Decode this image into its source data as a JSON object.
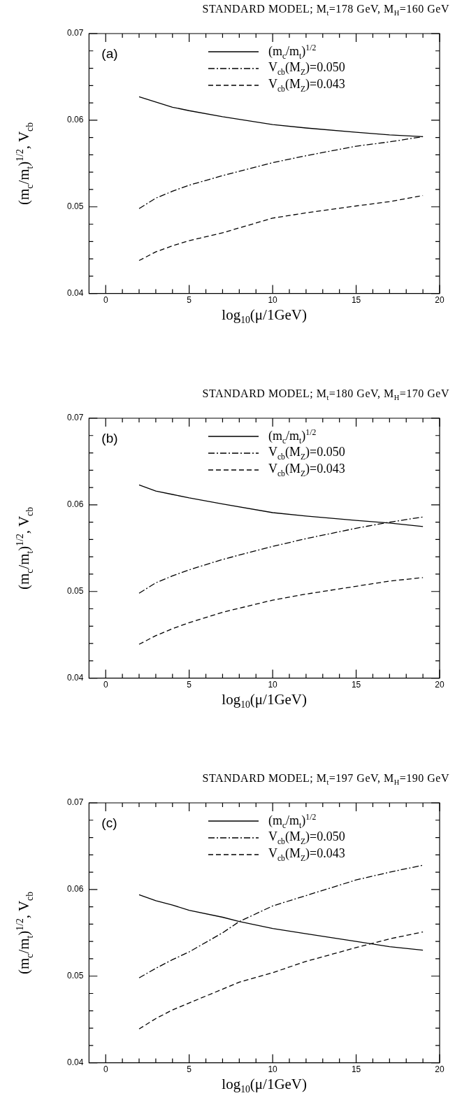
{
  "chart_data": [
    {
      "type": "line",
      "title": "STANDARD MODEL; M$_{t}$=178 GeV, M$_{H}$=160 GeV",
      "xlabel": "log$_{10}$(μ/1GeV)",
      "ylabel": "(m$_{c}$/m$_{t}$)$^{1/2}$, V$_{cb}$",
      "annotations": [
        "(a)"
      ],
      "legend": "top right",
      "marker": "none",
      "grid": false,
      "x": [
        2,
        3,
        4,
        5,
        7,
        10,
        12,
        15,
        17,
        19
      ],
      "xlim": [
        -1,
        20
      ],
      "xticks": [
        0,
        {
          "value": 1,
          "label": null
        },
        {
          "value": 2,
          "label": null
        },
        {
          "value": 3,
          "label": null
        },
        {
          "value": 4,
          "label": null
        },
        5,
        {
          "value": 6,
          "label": null
        },
        {
          "value": 7,
          "label": null
        },
        {
          "value": 8,
          "label": null
        },
        {
          "value": 9,
          "label": null
        },
        10,
        {
          "value": 11,
          "label": null
        },
        {
          "value": 12,
          "label": null
        },
        {
          "value": 13,
          "label": null
        },
        {
          "value": 14,
          "label": null
        },
        15,
        {
          "value": 16,
          "label": null
        },
        {
          "value": 17,
          "label": null
        },
        {
          "value": 18,
          "label": null
        },
        {
          "value": 19,
          "label": null
        },
        20
      ],
      "ylim": [
        0.04,
        0.07
      ],
      "yticks": [
        0.04,
        {
          "value": 0.042,
          "label": null
        },
        {
          "value": 0.044,
          "label": null
        },
        {
          "value": 0.046,
          "label": null
        },
        {
          "value": 0.048,
          "label": null
        },
        0.05,
        {
          "value": 0.052,
          "label": null
        },
        {
          "value": 0.054,
          "label": null
        },
        {
          "value": 0.056,
          "label": null
        },
        {
          "value": 0.058,
          "label": null
        },
        0.06,
        {
          "value": 0.062,
          "label": null
        },
        {
          "value": 0.064,
          "label": null
        },
        {
          "value": 0.066,
          "label": null
        },
        {
          "value": 0.068,
          "label": null
        },
        0.07
      ],
      "series": [
        {
          "name": "(m$_{c}$/m$_{t}$)$^{1/2}$",
          "color": "#000000",
          "line_style": "solid",
          "values": [
            0.0627,
            0.0621,
            0.0615,
            0.0611,
            0.0604,
            0.0595,
            0.0591,
            0.0586,
            0.0583,
            0.0581
          ]
        },
        {
          "name": "V$_{cb}$(M$_{Z}$)=0.050",
          "color": "#000000",
          "line_style": "dashdot",
          "values": [
            0.0498,
            0.051,
            0.0518,
            0.0525,
            0.0536,
            0.0551,
            0.0559,
            0.057,
            0.0575,
            0.0581
          ]
        },
        {
          "name": "V$_{cb}$(M$_{Z}$)=0.043",
          "color": "#000000",
          "line_style": "dashed",
          "values": [
            0.0438,
            0.0448,
            0.0455,
            0.0461,
            0.047,
            0.0487,
            0.0493,
            0.0501,
            0.0506,
            0.0513
          ]
        }
      ]
    },
    {
      "type": "line",
      "title": "STANDARD MODEL; M$_{t}$=180 GeV, M$_{H}$=170 GeV",
      "xlabel": "log$_{10}$(μ/1GeV)",
      "ylabel": "(m$_{c}$/m$_{t}$)$^{1/2}$, V$_{cb}$",
      "annotations": [
        "(b)"
      ],
      "legend": "top right",
      "marker": "none",
      "grid": false,
      "x": [
        2,
        3,
        4,
        5,
        7,
        10,
        12,
        15,
        17,
        19
      ],
      "xlim": [
        -1,
        20
      ],
      "xticks": [
        0,
        {
          "value": 1,
          "label": null
        },
        {
          "value": 2,
          "label": null
        },
        {
          "value": 3,
          "label": null
        },
        {
          "value": 4,
          "label": null
        },
        5,
        {
          "value": 6,
          "label": null
        },
        {
          "value": 7,
          "label": null
        },
        {
          "value": 8,
          "label": null
        },
        {
          "value": 9,
          "label": null
        },
        10,
        {
          "value": 11,
          "label": null
        },
        {
          "value": 12,
          "label": null
        },
        {
          "value": 13,
          "label": null
        },
        {
          "value": 14,
          "label": null
        },
        15,
        {
          "value": 16,
          "label": null
        },
        {
          "value": 17,
          "label": null
        },
        {
          "value": 18,
          "label": null
        },
        {
          "value": 19,
          "label": null
        },
        20
      ],
      "ylim": [
        0.04,
        0.07
      ],
      "yticks": [
        0.04,
        {
          "value": 0.042,
          "label": null
        },
        {
          "value": 0.044,
          "label": null
        },
        {
          "value": 0.046,
          "label": null
        },
        {
          "value": 0.048,
          "label": null
        },
        0.05,
        {
          "value": 0.052,
          "label": null
        },
        {
          "value": 0.054,
          "label": null
        },
        {
          "value": 0.056,
          "label": null
        },
        {
          "value": 0.058,
          "label": null
        },
        0.06,
        {
          "value": 0.062,
          "label": null
        },
        {
          "value": 0.064,
          "label": null
        },
        {
          "value": 0.066,
          "label": null
        },
        {
          "value": 0.068,
          "label": null
        },
        0.07
      ],
      "series": [
        {
          "name": "(m$_{c}$/m$_{t}$)$^{1/2}$",
          "color": "#000000",
          "line_style": "solid",
          "values": [
            0.0623,
            0.0616,
            0.0612,
            0.0608,
            0.0601,
            0.0591,
            0.0587,
            0.0582,
            0.0579,
            0.0575
          ]
        },
        {
          "name": "V$_{cb}$(M$_{Z}$)=0.050",
          "color": "#000000",
          "line_style": "dashdot",
          "values": [
            0.0498,
            0.051,
            0.0518,
            0.0525,
            0.0537,
            0.0552,
            0.0561,
            0.0573,
            0.058,
            0.0586
          ]
        },
        {
          "name": "V$_{cb}$(M$_{Z}$)=0.043",
          "color": "#000000",
          "line_style": "dashed",
          "values": [
            0.0439,
            0.0449,
            0.0457,
            0.0464,
            0.0476,
            0.049,
            0.0497,
            0.0506,
            0.0512,
            0.0516
          ]
        }
      ]
    },
    {
      "type": "line",
      "title": "STANDARD MODEL; M$_{t}$=197 GeV, M$_{H}$=190 GeV",
      "xlabel": "log$_{10}$(μ/1GeV)",
      "ylabel": "(m$_{c}$/m$_{t}$)$^{1/2}$, V$_{cb}$",
      "annotations": [
        "(c)"
      ],
      "legend": "top right",
      "marker": "none",
      "grid": false,
      "x": [
        2,
        3,
        4,
        5,
        7,
        8,
        10,
        12,
        15,
        17,
        19
      ],
      "xlim": [
        -1,
        20
      ],
      "xticks": [
        0,
        {
          "value": 1,
          "label": null
        },
        {
          "value": 2,
          "label": null
        },
        {
          "value": 3,
          "label": null
        },
        {
          "value": 4,
          "label": null
        },
        5,
        {
          "value": 6,
          "label": null
        },
        {
          "value": 7,
          "label": null
        },
        {
          "value": 8,
          "label": null
        },
        {
          "value": 9,
          "label": null
        },
        10,
        {
          "value": 11,
          "label": null
        },
        {
          "value": 12,
          "label": null
        },
        {
          "value": 13,
          "label": null
        },
        {
          "value": 14,
          "label": null
        },
        15,
        {
          "value": 16,
          "label": null
        },
        {
          "value": 17,
          "label": null
        },
        {
          "value": 18,
          "label": null
        },
        {
          "value": 19,
          "label": null
        },
        20
      ],
      "ylim": [
        0.04,
        0.07
      ],
      "yticks": [
        0.04,
        {
          "value": 0.042,
          "label": null
        },
        {
          "value": 0.044,
          "label": null
        },
        {
          "value": 0.046,
          "label": null
        },
        {
          "value": 0.048,
          "label": null
        },
        0.05,
        {
          "value": 0.052,
          "label": null
        },
        {
          "value": 0.054,
          "label": null
        },
        {
          "value": 0.056,
          "label": null
        },
        {
          "value": 0.058,
          "label": null
        },
        0.06,
        {
          "value": 0.062,
          "label": null
        },
        {
          "value": 0.064,
          "label": null
        },
        {
          "value": 0.066,
          "label": null
        },
        {
          "value": 0.068,
          "label": null
        },
        0.07
      ],
      "series": [
        {
          "name": "(m$_{c}$/m$_{t}$)$^{1/2}$",
          "color": "#000000",
          "line_style": "solid",
          "values": [
            0.0594,
            0.0587,
            0.0582,
            0.0576,
            0.0568,
            0.0563,
            0.0555,
            0.0549,
            0.054,
            0.0534,
            0.053
          ]
        },
        {
          "name": "V$_{cb}$(M$_{Z}$)=0.050",
          "color": "#000000",
          "line_style": "dashdot",
          "values": [
            0.0498,
            0.0509,
            0.0519,
            0.0528,
            0.055,
            0.0563,
            0.0581,
            0.0593,
            0.0611,
            0.062,
            0.0628
          ]
        },
        {
          "name": "V$_{cb}$(M$_{Z}$)=0.043",
          "color": "#000000",
          "line_style": "dashed",
          "values": [
            0.0439,
            0.0451,
            0.0461,
            0.0469,
            0.0485,
            0.0493,
            0.0504,
            0.0517,
            0.0533,
            0.0543,
            0.0551
          ]
        }
      ]
    }
  ]
}
